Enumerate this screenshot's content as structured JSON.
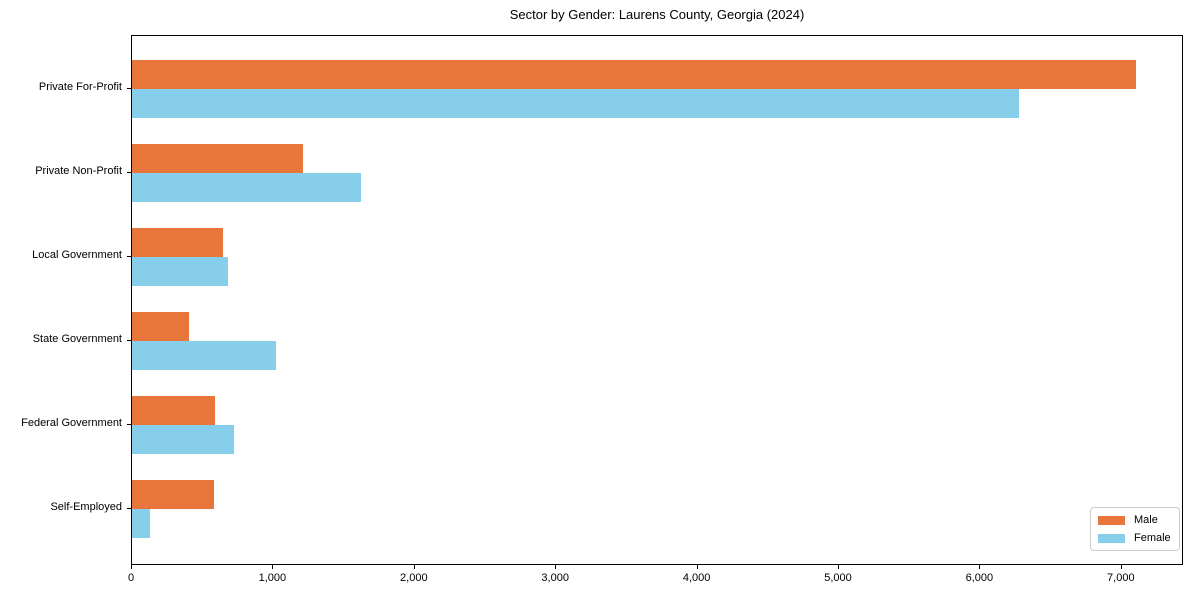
{
  "chart_data": {
    "type": "bar",
    "orientation": "horizontal",
    "title": "Sector by Gender: Laurens County, Georgia (2024)",
    "xlabel": "",
    "ylabel": "",
    "categories": [
      "Private For-Profit",
      "Private Non-Profit",
      "Local Government",
      "State Government",
      "Federal Government",
      "Self-Employed"
    ],
    "series": [
      {
        "name": "Male",
        "color": "#e8763b",
        "values": [
          7100,
          1210,
          640,
          400,
          590,
          580
        ]
      },
      {
        "name": "Female",
        "color": "#87ceeb",
        "values": [
          6270,
          1620,
          680,
          1020,
          720,
          130
        ]
      }
    ],
    "xlim": [
      0,
      7440
    ],
    "x_ticks": [
      {
        "value": 0,
        "label": "0"
      },
      {
        "value": 1000,
        "label": "1,000"
      },
      {
        "value": 2000,
        "label": "2,000"
      },
      {
        "value": 3000,
        "label": "3,000"
      },
      {
        "value": 4000,
        "label": "4,000"
      },
      {
        "value": 5000,
        "label": "5,000"
      },
      {
        "value": 6000,
        "label": "6,000"
      },
      {
        "value": 7000,
        "label": "7,000"
      }
    ],
    "grid": false,
    "legend_position": "lower right"
  }
}
